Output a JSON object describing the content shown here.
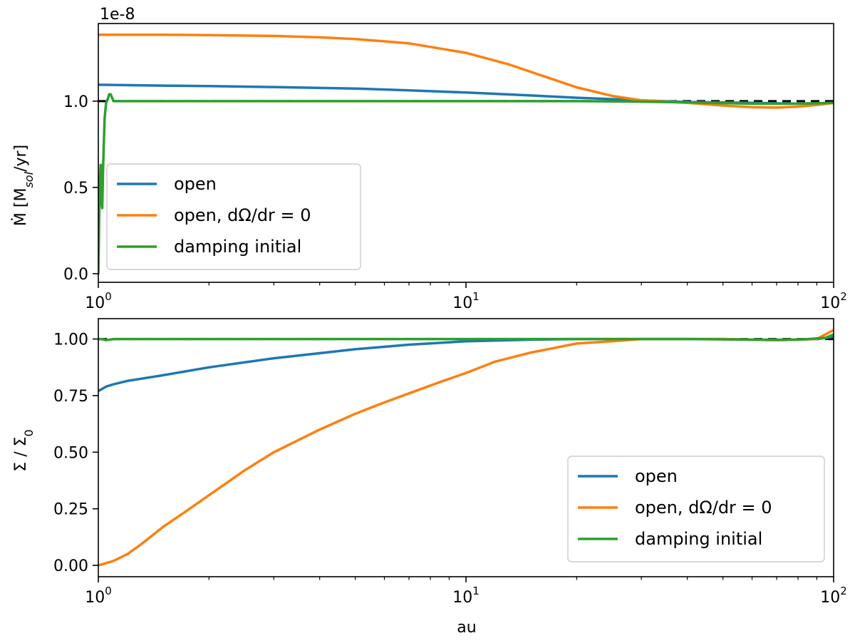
{
  "chart_data": [
    {
      "type": "line",
      "xscale": "log",
      "xlim": [
        1,
        100
      ],
      "ylim": [
        -5e-10,
        1.45e-08
      ],
      "xlabel": "",
      "ylabel": "Ṁ  [M_sol/yr]",
      "ylabel_parts": {
        "main": "Ṁ  [M",
        "sub": "sol",
        "tail": "/yr]"
      },
      "offset_text": "1e-8",
      "xticks": [
        {
          "value": 1,
          "base": "10",
          "exp": "0"
        },
        {
          "value": 10,
          "base": "10",
          "exp": "1"
        },
        {
          "value": 100,
          "base": "10",
          "exp": "2"
        }
      ],
      "yticks": [
        {
          "value": 0.0,
          "label": "0.0"
        },
        {
          "value": 5e-09,
          "label": "0.5"
        },
        {
          "value": 1e-08,
          "label": "1.0"
        }
      ],
      "grid": false,
      "legend_position": "bottom-left",
      "reference_line": {
        "y": 1e-08,
        "style": "dashed",
        "color": "#000000"
      },
      "series": [
        {
          "name": "open",
          "color": "#1f77b4",
          "x": [
            1,
            1.5,
            2,
            3,
            5,
            7,
            10,
            15,
            20,
            30,
            40,
            60,
            80,
            100
          ],
          "y": [
            1.095e-08,
            1.09e-08,
            1.087e-08,
            1.082e-08,
            1.073e-08,
            1.063e-08,
            1.05e-08,
            1.033e-08,
            1.02e-08,
            1.005e-08,
            9.95e-09,
            9.9e-09,
            9.85e-09,
            9.9e-09
          ]
        },
        {
          "name": "open, dΩ/dr = 0",
          "color": "#ff7f0e",
          "x": [
            1,
            1.5,
            2,
            3,
            4,
            5,
            7,
            10,
            13,
            16,
            20,
            25,
            30,
            40,
            50,
            60,
            70,
            80,
            90,
            100
          ],
          "y": [
            1.385e-08,
            1.385e-08,
            1.383e-08,
            1.378e-08,
            1.37e-08,
            1.36e-08,
            1.335e-08,
            1.28e-08,
            1.215e-08,
            1.15e-08,
            1.08e-08,
            1.03e-08,
            1.005e-08,
            9.9e-09,
            9.75e-09,
            9.65e-09,
            9.63e-09,
            9.68e-09,
            9.78e-09,
            9.9e-09
          ]
        },
        {
          "name": "damping initial",
          "color": "#2ca02c",
          "x": [
            1,
            1.005,
            1.01,
            1.015,
            1.02,
            1.025,
            1.03,
            1.04,
            1.05,
            1.06,
            1.07,
            1.08,
            1.09,
            1.1,
            1.12,
            1.15,
            1.2,
            1.5,
            2,
            5,
            10,
            20,
            30,
            40,
            60,
            80,
            100
          ],
          "y": [
            0.0,
            3e-09,
            5.5e-09,
            6.3e-09,
            4.2e-09,
            3.8e-09,
            6e-09,
            9e-09,
            9.9e-09,
            1.01e-08,
            1.04e-08,
            1.04e-08,
            1.02e-08,
            1e-08,
            1e-08,
            1e-08,
            1e-08,
            1e-08,
            1e-08,
            1e-08,
            1e-08,
            1e-08,
            9.97e-09,
            9.93e-09,
            9.85e-09,
            9.85e-09,
            9.9e-09
          ]
        }
      ]
    },
    {
      "type": "line",
      "xscale": "log",
      "xlim": [
        1,
        100
      ],
      "ylim": [
        -0.05,
        1.09
      ],
      "xlabel": "au",
      "ylabel": "Σ / Σ_0",
      "ylabel_parts": {
        "main": "Σ / Σ",
        "sub": "0",
        "tail": ""
      },
      "xticks": [
        {
          "value": 1,
          "base": "10",
          "exp": "0"
        },
        {
          "value": 10,
          "base": "10",
          "exp": "1"
        },
        {
          "value": 100,
          "base": "10",
          "exp": "2"
        }
      ],
      "yticks": [
        {
          "value": 0.0,
          "label": "0.00"
        },
        {
          "value": 0.25,
          "label": "0.25"
        },
        {
          "value": 0.5,
          "label": "0.50"
        },
        {
          "value": 0.75,
          "label": "0.75"
        },
        {
          "value": 1.0,
          "label": "1.00"
        }
      ],
      "grid": false,
      "legend_position": "bottom-right",
      "reference_line": {
        "y": 1.0,
        "style": "dashed",
        "color": "#000000"
      },
      "series": [
        {
          "name": "open",
          "color": "#1f77b4",
          "x": [
            1,
            1.05,
            1.1,
            1.2,
            1.5,
            2,
            3,
            5,
            7,
            10,
            15,
            20,
            30,
            50,
            70,
            90,
            100
          ],
          "y": [
            0.77,
            0.79,
            0.8,
            0.815,
            0.84,
            0.875,
            0.915,
            0.955,
            0.975,
            0.99,
            0.997,
            1.0,
            1.0,
            1.0,
            0.995,
            1.0,
            1.01
          ]
        },
        {
          "name": "open, dΩ/dr = 0",
          "color": "#ff7f0e",
          "x": [
            1,
            1.05,
            1.1,
            1.2,
            1.3,
            1.5,
            1.7,
            2,
            2.5,
            3,
            4,
            5,
            6,
            7,
            8.5,
            10,
            12,
            15,
            20,
            25,
            30,
            40,
            50,
            70,
            90,
            100
          ],
          "y": [
            0.0,
            0.01,
            0.02,
            0.05,
            0.09,
            0.17,
            0.23,
            0.31,
            0.42,
            0.5,
            0.6,
            0.67,
            0.72,
            0.76,
            0.81,
            0.85,
            0.9,
            0.94,
            0.98,
            0.99,
            1.0,
            1.0,
            1.0,
            0.995,
            1.0,
            1.04
          ]
        },
        {
          "name": "damping initial",
          "color": "#2ca02c",
          "x": [
            1,
            1.02,
            1.05,
            1.1,
            2,
            5,
            10,
            20,
            40,
            60,
            80,
            95,
            100
          ],
          "y": [
            1.0,
            1.0,
            0.995,
            1.0,
            1.0,
            1.0,
            1.0,
            1.0,
            1.0,
            0.997,
            0.997,
            1.005,
            1.02
          ]
        }
      ]
    }
  ]
}
